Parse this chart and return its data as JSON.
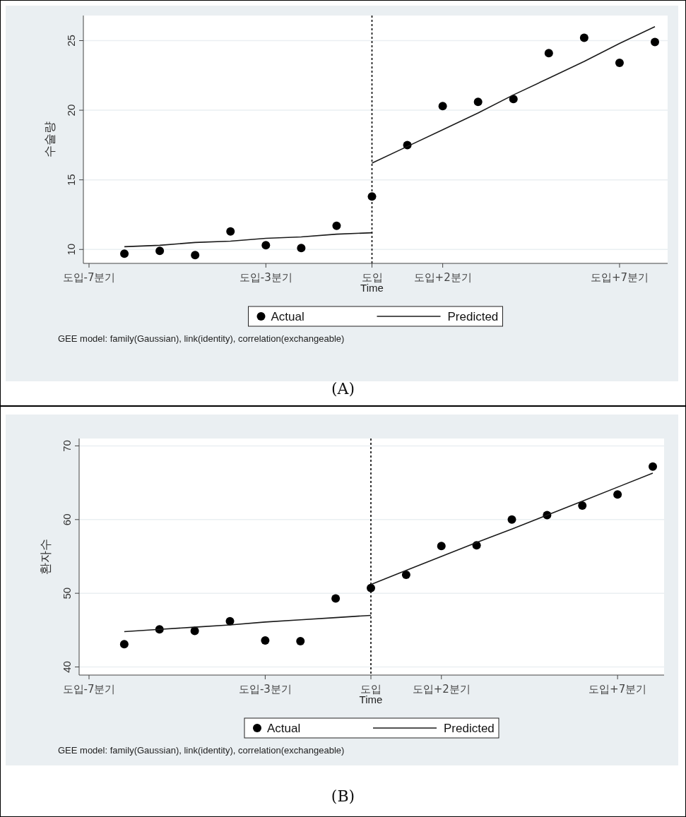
{
  "chart_data": [
    {
      "type": "scatter",
      "title": "(A)",
      "xlabel": "Time",
      "ylabel": "수술량",
      "annotations": [
        "GEE model: family(Gaussian), link(identity), correlation(exchangeable)"
      ],
      "categories": [
        "도입-7분기",
        null,
        null,
        null,
        null,
        "도입-3분기",
        null,
        null,
        "도입",
        null,
        "도입+2분기",
        null,
        null,
        null,
        null,
        "도입+7분기",
        null
      ],
      "ylim": [
        9,
        26.8
      ],
      "yticks": [
        10,
        15,
        20,
        25
      ],
      "grid": "y",
      "legend": "bottom",
      "ref_lines": [
        {
          "axis": "x",
          "value": "도입",
          "line_style": "dotted",
          "color": "#222222"
        }
      ],
      "series": [
        {
          "name": "Actual",
          "marker": "circle",
          "color": "#000000",
          "values": [
            null,
            9.7,
            9.9,
            9.6,
            11.3,
            10.3,
            10.1,
            11.7,
            13.8,
            17.5,
            20.3,
            20.6,
            20.8,
            24.1,
            25.2,
            23.4,
            24.9
          ]
        },
        {
          "name": "Predicted",
          "type": "line",
          "line_style": "solid",
          "color": "#1a1a1a",
          "values": [
            null,
            10.2,
            10.3,
            10.5,
            10.6,
            10.8,
            10.9,
            11.1,
            11.2,
            null,
            null,
            null,
            null,
            null,
            null,
            null,
            null
          ]
        },
        {
          "type": "line",
          "line_style": "solid",
          "color": "#1a1a1a",
          "values": [
            null,
            null,
            null,
            null,
            null,
            null,
            null,
            null,
            16.2,
            17.4,
            18.6,
            19.8,
            21.1,
            22.3,
            23.5,
            24.8,
            26.0
          ]
        }
      ]
    },
    {
      "type": "scatter",
      "title": "(B)",
      "xlabel": "Time",
      "ylabel": "환자수",
      "annotations": [
        "GEE model: family(Gaussian), link(identity), correlation(exchangeable)"
      ],
      "categories": [
        "도입-7분기",
        null,
        null,
        null,
        null,
        "도입-3분기",
        null,
        null,
        "도입",
        null,
        "도입+2분기",
        null,
        null,
        null,
        null,
        "도입+7분기",
        null
      ],
      "ylim": [
        38.9,
        71
      ],
      "yticks": [
        40,
        50,
        60,
        70
      ],
      "grid": "y",
      "legend": "bottom",
      "ref_lines": [
        {
          "axis": "x",
          "value": "도입",
          "line_style": "dotted",
          "color": "#222222"
        }
      ],
      "series": [
        {
          "name": "Actual",
          "marker": "circle",
          "color": "#000000",
          "values": [
            null,
            43.1,
            45.1,
            44.9,
            46.2,
            43.6,
            43.5,
            49.3,
            50.7,
            52.5,
            56.4,
            56.5,
            60.0,
            60.6,
            61.9,
            63.4,
            67.2
          ]
        },
        {
          "name": "Predicted",
          "type": "line",
          "line_style": "solid",
          "color": "#1a1a1a",
          "values": [
            null,
            44.8,
            45.1,
            45.4,
            45.7,
            46.1,
            46.4,
            46.7,
            47.0,
            null,
            null,
            null,
            null,
            null,
            null,
            null,
            null
          ]
        },
        {
          "type": "line",
          "line_style": "solid",
          "color": "#1a1a1a",
          "values": [
            null,
            null,
            null,
            null,
            null,
            null,
            null,
            null,
            51.2,
            53.1,
            55.0,
            56.9,
            58.7,
            60.6,
            62.5,
            64.4,
            66.3
          ]
        }
      ]
    }
  ]
}
